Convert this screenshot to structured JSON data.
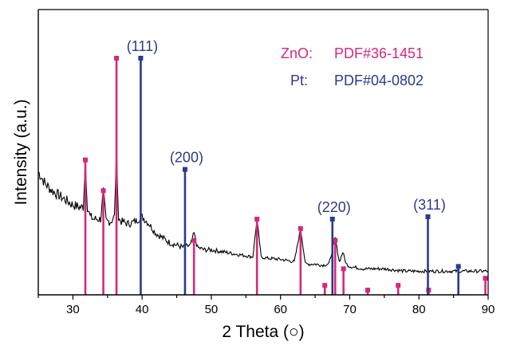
{
  "chart_data": {
    "type": "line",
    "xlabel": "2 Theta (○)",
    "ylabel": "Intensity (a.u.)",
    "xlim": [
      25,
      90
    ],
    "x_ticks": [
      30,
      40,
      50,
      60,
      70,
      80,
      90
    ],
    "ylim": [
      0,
      1
    ],
    "grid": false,
    "legend_position": "top-right",
    "series": [
      {
        "name": "ZnO:  PDF#36-1451",
        "type": "stick",
        "color": "#d6287a",
        "x": [
          31.8,
          34.4,
          36.3,
          47.5,
          56.6,
          62.9,
          66.4,
          67.9,
          69.1,
          72.6,
          77.0,
          81.4,
          89.6
        ],
        "y": [
          0.57,
          0.44,
          1.0,
          0.23,
          0.32,
          0.28,
          0.04,
          0.23,
          0.11,
          0.02,
          0.04,
          0.02,
          0.07
        ]
      },
      {
        "name": "Pt:      PDF#04-0802",
        "type": "stick",
        "color": "#2b3a8c",
        "x": [
          39.8,
          46.2,
          67.5,
          81.3,
          85.7
        ],
        "y": [
          1.0,
          0.53,
          0.32,
          0.33,
          0.12
        ]
      },
      {
        "name": "",
        "type": "line",
        "color": "#000000",
        "x": [
          25,
          26,
          27,
          28,
          29,
          30,
          31,
          31.5,
          31.8,
          32.1,
          32.5,
          33,
          34,
          34.4,
          34.8,
          35.5,
          36,
          36.3,
          36.6,
          37,
          38,
          39,
          40,
          41,
          42,
          43,
          44,
          45,
          46,
          47,
          47.5,
          48,
          49,
          50,
          52,
          54,
          56,
          56.6,
          57.2,
          58,
          60,
          62,
          62.9,
          63.6,
          65,
          66,
          67,
          67.9,
          68.5,
          69,
          69.5,
          70,
          72,
          75,
          78,
          80,
          82,
          85,
          88,
          90
        ],
        "y": [
          0.52,
          0.47,
          0.44,
          0.42,
          0.4,
          0.38,
          0.37,
          0.37,
          0.57,
          0.37,
          0.33,
          0.32,
          0.32,
          0.44,
          0.31,
          0.31,
          0.33,
          0.61,
          0.32,
          0.31,
          0.3,
          0.31,
          0.33,
          0.3,
          0.26,
          0.24,
          0.22,
          0.21,
          0.2,
          0.21,
          0.26,
          0.2,
          0.19,
          0.19,
          0.18,
          0.17,
          0.16,
          0.32,
          0.16,
          0.155,
          0.15,
          0.14,
          0.28,
          0.13,
          0.13,
          0.125,
          0.13,
          0.24,
          0.14,
          0.18,
          0.13,
          0.12,
          0.11,
          0.11,
          0.1,
          0.1,
          0.1,
          0.1,
          0.1,
          0.1
        ]
      }
    ],
    "annotations": [
      {
        "text": "(111)",
        "x": 39.8
      },
      {
        "text": "(200)",
        "x": 46.2
      },
      {
        "text": "(220)",
        "x": 67.5
      },
      {
        "text": "(311)",
        "x": 81.3
      }
    ],
    "legend": [
      {
        "label": "ZnO:",
        "ref": "PDF#36-1451",
        "color": "#d6287a"
      },
      {
        "label": "Pt:",
        "ref": "PDF#04-0802",
        "color": "#2b3a8c"
      }
    ]
  }
}
